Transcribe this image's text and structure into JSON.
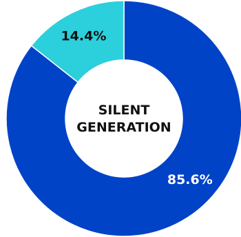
{
  "chart_data": {
    "type": "pie",
    "variant": "donut",
    "center_text": [
      "SILENT",
      "GENERATION"
    ],
    "slices": [
      {
        "label": "85.6%",
        "value": 85.6,
        "color": "#0043c7",
        "label_color": "#ffffff"
      },
      {
        "label": "14.4%",
        "value": 14.4,
        "color": "#2ccfdc",
        "label_color": "#111111"
      }
    ],
    "start_angle_deg": 0,
    "direction": "clockwise",
    "legend": "none"
  }
}
